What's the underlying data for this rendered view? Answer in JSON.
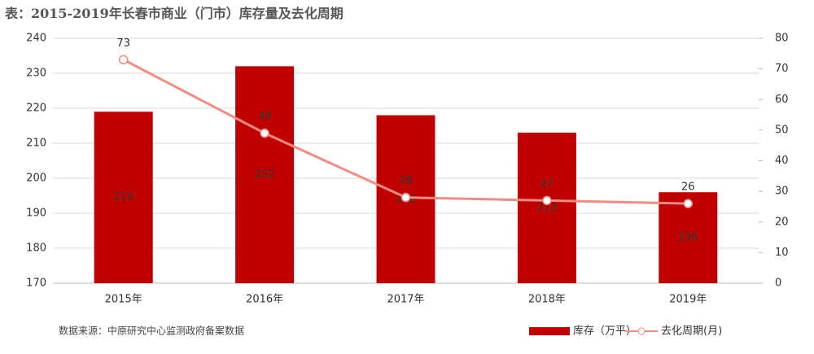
{
  "chart_data": {
    "type": "combo",
    "title": "表：2015-2019年长春市商业（门市）库存量及去化周期",
    "source": "数据来源：中原研究中心监测政府备案数据",
    "categories": [
      "2015年",
      "2016年",
      "2017年",
      "2018年",
      "2019年"
    ],
    "series": [
      {
        "name": "库存（万平）",
        "type": "bar",
        "color": "#c00000",
        "values": [
          219,
          232,
          218,
          213,
          196
        ]
      },
      {
        "name": "去化周期(月)",
        "type": "line",
        "axis": "y2",
        "color": "#f28b82",
        "values": [
          73,
          49,
          28,
          27,
          26
        ]
      }
    ],
    "ylim": [
      170,
      240
    ],
    "yticks": [
      170,
      180,
      190,
      200,
      210,
      220,
      230,
      240
    ],
    "y2lim": [
      0,
      80
    ],
    "y2ticks": [
      0,
      10,
      20,
      30,
      40,
      50,
      60,
      70,
      80
    ],
    "grid": true,
    "legend": "bottom-right"
  }
}
